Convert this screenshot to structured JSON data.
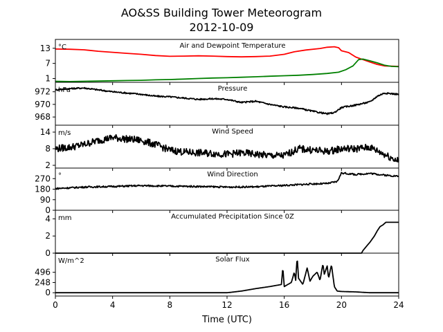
{
  "chart_data": {
    "type": "line",
    "title": "AO&SS Building Tower Meteorogram",
    "subtitle": "2012-10-09",
    "xlabel": "Time (UTC)",
    "xlim": [
      0,
      24
    ],
    "xticks": [
      0,
      4,
      8,
      12,
      16,
      20,
      24
    ],
    "panels": [
      {
        "title": "Air and Dewpoint Temperature",
        "unit": "°C",
        "ylim": [
          -0.5,
          16.5
        ],
        "yticks": [
          1,
          7,
          13
        ],
        "series": [
          {
            "color": "#ff0000",
            "points": [
              [
                0,
                12.7
              ],
              [
                1,
                12.6
              ],
              [
                2,
                12.4
              ],
              [
                3,
                11.8
              ],
              [
                4,
                11.4
              ],
              [
                5,
                11.0
              ],
              [
                6,
                10.6
              ],
              [
                7,
                10.1
              ],
              [
                8,
                9.8
              ],
              [
                9,
                9.9
              ],
              [
                10,
                10.0
              ],
              [
                11,
                9.9
              ],
              [
                12,
                9.7
              ],
              [
                13,
                9.6
              ],
              [
                14,
                9.7
              ],
              [
                15,
                9.9
              ],
              [
                16,
                10.6
              ],
              [
                16.7,
                11.6
              ],
              [
                17.5,
                12.3
              ],
              [
                18.5,
                12.9
              ],
              [
                19,
                13.4
              ],
              [
                19.5,
                13.6
              ],
              [
                19.8,
                13.2
              ],
              [
                20,
                12.0
              ],
              [
                20.5,
                11.3
              ],
              [
                21,
                9.5
              ],
              [
                21.5,
                8.5
              ],
              [
                22,
                7.5
              ],
              [
                22.5,
                6.6
              ],
              [
                23,
                6.0
              ],
              [
                24,
                5.8
              ]
            ]
          },
          {
            "color": "#008000",
            "points": [
              [
                0,
                -0.1
              ],
              [
                1,
                -0.2
              ],
              [
                2,
                -0.1
              ],
              [
                3,
                0.0
              ],
              [
                4,
                0.1
              ],
              [
                5,
                0.2
              ],
              [
                6,
                0.3
              ],
              [
                7,
                0.5
              ],
              [
                8,
                0.6
              ],
              [
                9,
                0.8
              ],
              [
                10,
                1.0
              ],
              [
                11,
                1.2
              ],
              [
                12,
                1.3
              ],
              [
                13,
                1.5
              ],
              [
                14,
                1.7
              ],
              [
                15,
                1.9
              ],
              [
                16,
                2.1
              ],
              [
                17,
                2.3
              ],
              [
                18,
                2.6
              ],
              [
                19,
                3.0
              ],
              [
                19.8,
                3.5
              ],
              [
                20.3,
                4.5
              ],
              [
                20.8,
                6.0
              ],
              [
                21.2,
                8.5
              ],
              [
                21.5,
                8.7
              ],
              [
                22,
                8.0
              ],
              [
                22.5,
                7.2
              ],
              [
                23,
                6.3
              ],
              [
                23.5,
                5.8
              ],
              [
                24,
                5.7
              ]
            ]
          }
        ]
      },
      {
        "title": "Pressure",
        "unit": "hPa",
        "ylim": [
          966.7,
          973.5
        ],
        "yticks": [
          968,
          970,
          972
        ],
        "series": [
          {
            "color": "#000000",
            "noise": 0.12,
            "points": [
              [
                0,
                972.3
              ],
              [
                1,
                972.5
              ],
              [
                2,
                972.6
              ],
              [
                3,
                972.3
              ],
              [
                4,
                972.0
              ],
              [
                5,
                971.8
              ],
              [
                6,
                971.6
              ],
              [
                7,
                971.3
              ],
              [
                8,
                971.2
              ],
              [
                9,
                971.0
              ],
              [
                10,
                970.8
              ],
              [
                11,
                970.9
              ],
              [
                12,
                970.8
              ],
              [
                13,
                970.3
              ],
              [
                14,
                970.5
              ],
              [
                15,
                970.0
              ],
              [
                16,
                969.6
              ],
              [
                17,
                969.4
              ],
              [
                18,
                968.9
              ],
              [
                19,
                968.5
              ],
              [
                19.5,
                968.7
              ],
              [
                20,
                969.5
              ],
              [
                21,
                969.9
              ],
              [
                22,
                970.4
              ],
              [
                22.5,
                971.3
              ],
              [
                23,
                971.8
              ],
              [
                24,
                971.6
              ]
            ]
          }
        ]
      },
      {
        "title": "Wind Speed",
        "unit": "m/s",
        "ylim": [
          1,
          16.5
        ],
        "yticks": [
          2,
          8,
          14
        ],
        "series": [
          {
            "color": "#000000",
            "noise": 1.3,
            "points": [
              [
                0,
                8
              ],
              [
                1,
                8.5
              ],
              [
                2,
                9.5
              ],
              [
                3,
                11
              ],
              [
                4,
                12
              ],
              [
                5,
                11.5
              ],
              [
                6,
                11
              ],
              [
                7,
                9.5
              ],
              [
                8,
                7.5
              ],
              [
                9,
                6.8
              ],
              [
                10,
                6.5
              ],
              [
                11,
                6.3
              ],
              [
                12,
                6.0
              ],
              [
                13,
                6.5
              ],
              [
                14,
                6.0
              ],
              [
                15,
                5.5
              ],
              [
                16,
                5.5
              ],
              [
                17,
                8.0
              ],
              [
                18,
                7.5
              ],
              [
                19,
                7.0
              ],
              [
                20,
                8.0
              ],
              [
                21,
                8.0
              ],
              [
                22,
                8.5
              ],
              [
                23,
                6.0
              ],
              [
                24,
                3.5
              ]
            ]
          }
        ]
      },
      {
        "title": "Wind Direction",
        "unit": "°",
        "ylim": [
          0,
          360
        ],
        "yticks": [
          0,
          90,
          180,
          270
        ],
        "series": [
          {
            "color": "#000000",
            "noise": 7,
            "points": [
              [
                0,
                185
              ],
              [
                2,
                198
              ],
              [
                4,
                203
              ],
              [
                6,
                210
              ],
              [
                8,
                206
              ],
              [
                10,
                203
              ],
              [
                12,
                198
              ],
              [
                14,
                200
              ],
              [
                16,
                212
              ],
              [
                18,
                225
              ],
              [
                19,
                228
              ],
              [
                19.7,
                245
              ],
              [
                20,
                318
              ],
              [
                21,
                305
              ],
              [
                22,
                315
              ],
              [
                23,
                300
              ],
              [
                24,
                290
              ]
            ]
          }
        ]
      },
      {
        "title": "Accumulated Precipitation Since 0Z",
        "unit": "mm",
        "ylim": [
          0,
          5
        ],
        "yticks": [
          0,
          2,
          4
        ],
        "series": [
          {
            "color": "#000000",
            "step": true,
            "points": [
              [
                0,
                0
              ],
              [
                21.4,
                0
              ],
              [
                21.5,
                0.3
              ],
              [
                21.8,
                0.9
              ],
              [
                22.0,
                1.3
              ],
              [
                22.3,
                2.0
              ],
              [
                22.5,
                2.6
              ],
              [
                22.7,
                3.1
              ],
              [
                22.9,
                3.3
              ],
              [
                23.1,
                3.6
              ],
              [
                24,
                3.6
              ]
            ]
          }
        ]
      },
      {
        "title": "Solar Flux",
        "unit": "W/m^2",
        "ylim": [
          -80,
          960
        ],
        "yticks": [
          0,
          248,
          496
        ],
        "series": [
          {
            "color": "#000000",
            "noise": 0,
            "points": [
              [
                0,
                0
              ],
              [
                12,
                0
              ],
              [
                13,
                40
              ],
              [
                14,
                100
              ],
              [
                15,
                150
              ],
              [
                15.8,
                200
              ],
              [
                15.9,
                620
              ],
              [
                16.0,
                150
              ],
              [
                16.5,
                250
              ],
              [
                16.7,
                500
              ],
              [
                16.8,
                300
              ],
              [
                16.9,
                870
              ],
              [
                17.0,
                350
              ],
              [
                17.3,
                200
              ],
              [
                17.6,
                600
              ],
              [
                17.8,
                280
              ],
              [
                18.0,
                400
              ],
              [
                18.3,
                500
              ],
              [
                18.5,
                300
              ],
              [
                18.7,
                700
              ],
              [
                18.8,
                450
              ],
              [
                19.0,
                650
              ],
              [
                19.1,
                350
              ],
              [
                19.3,
                680
              ],
              [
                19.5,
                150
              ],
              [
                19.7,
                40
              ],
              [
                20,
                30
              ],
              [
                21,
                20
              ],
              [
                22,
                0
              ],
              [
                24,
                0
              ]
            ]
          }
        ]
      }
    ]
  }
}
